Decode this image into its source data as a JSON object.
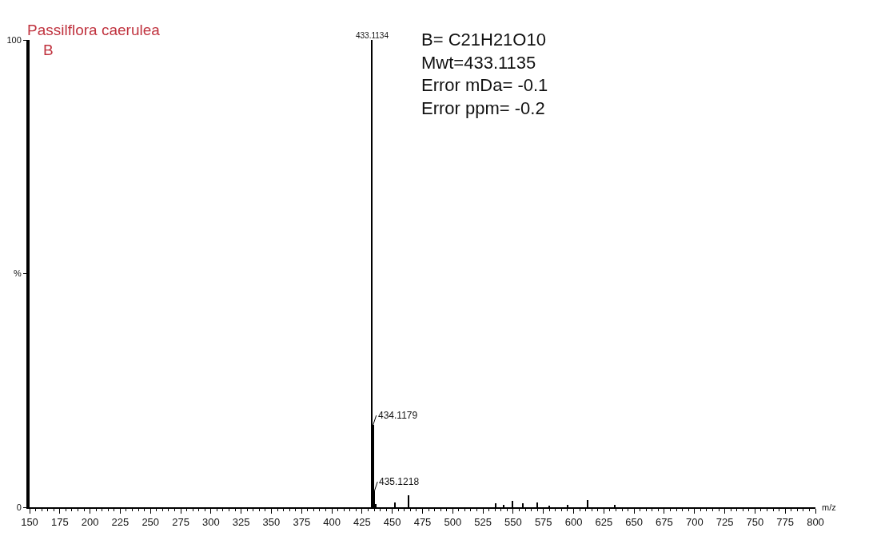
{
  "chart_data": {
    "type": "bar",
    "title": "Passilflora caerulea",
    "subtitle": "B",
    "xlabel": "m/z",
    "x": [
      433.1134,
      434.1179,
      435.1218,
      436.1,
      452.3,
      463.3,
      535.6,
      542.2,
      549.5,
      558.3,
      569.8,
      579.7,
      595.1,
      611.6,
      634.1
    ],
    "values": [
      100,
      17.6,
      3.4,
      0.6,
      1.1,
      2.6,
      0.9,
      0.5,
      1.3,
      0.9,
      1.1,
      0.4,
      0.5,
      1.6,
      0.5
    ],
    "color": "#000000",
    "xlim": [
      150,
      800
    ],
    "xticks": [
      150,
      175,
      200,
      225,
      250,
      275,
      300,
      325,
      350,
      375,
      400,
      425,
      450,
      475,
      500,
      525,
      550,
      575,
      600,
      625,
      650,
      675,
      700,
      725,
      750,
      775,
      800
    ],
    "ylim": [
      0,
      100
    ],
    "yticks": [
      0,
      {
        "value": 50,
        "label": "%"
      },
      100
    ],
    "annotations": [
      {
        "text": "433.1134",
        "x": 433.1134,
        "y": 100
      },
      {
        "text": "434.1179",
        "x": 434.1179,
        "y": 17.6
      },
      {
        "text": "435.1218",
        "x": 435.1218,
        "y": 3.4
      },
      "B= C21H21O10\nMwt=433.1135\nError mDa= -0.1\nError ppm= -0.2"
    ]
  }
}
